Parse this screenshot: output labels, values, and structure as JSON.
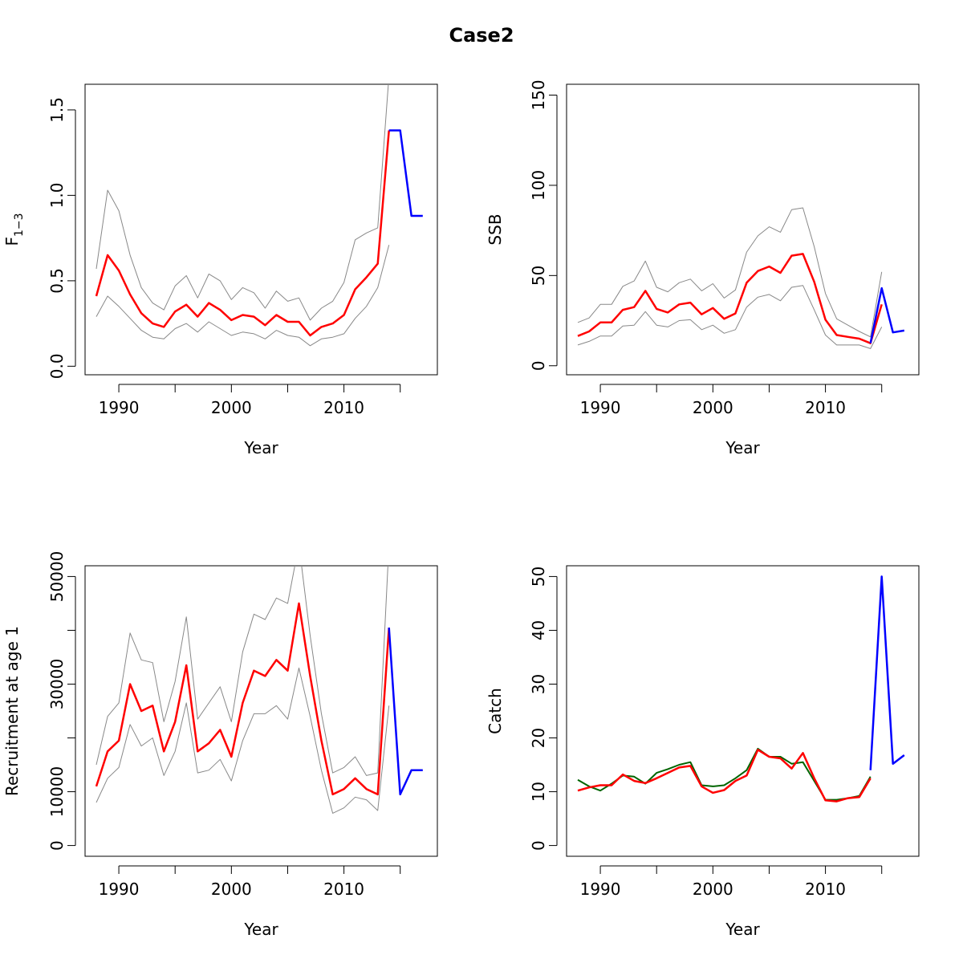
{
  "figure": {
    "title": "Case2"
  },
  "colors": {
    "estimate": "#ff0000",
    "ci": "#888888",
    "projection": "#0000ff",
    "observed": "#006400",
    "axis": "#000000"
  },
  "chart_data": [
    {
      "id": "f",
      "type": "line",
      "xlabel": "Year",
      "ylabel": "F",
      "ylabel_sub": "1−3",
      "xlim": [
        1987,
        2018.3
      ],
      "ylim": [
        -0.05,
        1.65
      ],
      "xticks": [
        1990,
        2000,
        2010
      ],
      "xtick_marks": [
        1990,
        1995,
        2000,
        2005,
        2010,
        2015
      ],
      "yticks": [
        0.0,
        0.5,
        1.0,
        1.5
      ],
      "ytick_labels": [
        "0.0",
        "0.5",
        "1.0",
        "1.5"
      ],
      "series": [
        {
          "role": "lower",
          "x": [
            1988,
            1989,
            1990,
            1991,
            1992,
            1993,
            1994,
            1995,
            1996,
            1997,
            1998,
            1999,
            2000,
            2001,
            2002,
            2003,
            2004,
            2005,
            2006,
            2007,
            2008,
            2009,
            2010,
            2011,
            2012,
            2013,
            2014
          ],
          "y": [
            0.29,
            0.41,
            0.35,
            0.28,
            0.21,
            0.17,
            0.16,
            0.22,
            0.25,
            0.2,
            0.26,
            0.22,
            0.18,
            0.2,
            0.19,
            0.16,
            0.21,
            0.18,
            0.17,
            0.12,
            0.16,
            0.17,
            0.19,
            0.28,
            0.35,
            0.46,
            0.71
          ]
        },
        {
          "role": "upper",
          "x": [
            1988,
            1989,
            1990,
            1991,
            1992,
            1993,
            1994,
            1995,
            1996,
            1997,
            1998,
            1999,
            2000,
            2001,
            2002,
            2003,
            2004,
            2005,
            2006,
            2007,
            2008,
            2009,
            2010,
            2011,
            2012,
            2013,
            2014
          ],
          "y": [
            0.57,
            1.03,
            0.91,
            0.65,
            0.46,
            0.37,
            0.33,
            0.47,
            0.53,
            0.4,
            0.54,
            0.5,
            0.39,
            0.46,
            0.43,
            0.34,
            0.44,
            0.38,
            0.4,
            0.27,
            0.34,
            0.38,
            0.49,
            0.74,
            0.78,
            0.81,
            1.7
          ]
        },
        {
          "role": "estimate",
          "x": [
            1988,
            1989,
            1990,
            1991,
            1992,
            1993,
            1994,
            1995,
            1996,
            1997,
            1998,
            1999,
            2000,
            2001,
            2002,
            2003,
            2004,
            2005,
            2006,
            2007,
            2008,
            2009,
            2010,
            2011,
            2012,
            2013,
            2014
          ],
          "y": [
            0.41,
            0.65,
            0.56,
            0.42,
            0.31,
            0.25,
            0.23,
            0.32,
            0.36,
            0.29,
            0.37,
            0.33,
            0.27,
            0.3,
            0.29,
            0.24,
            0.3,
            0.26,
            0.26,
            0.18,
            0.23,
            0.25,
            0.3,
            0.45,
            0.52,
            0.6,
            1.38
          ]
        },
        {
          "role": "projection",
          "x": [
            2014,
            2015,
            2016,
            2017
          ],
          "y": [
            1.38,
            1.38,
            0.88,
            0.88
          ]
        }
      ]
    },
    {
      "id": "ssb",
      "type": "line",
      "xlabel": "Year",
      "ylabel": "SSB",
      "xlim": [
        1987,
        2018.3
      ],
      "ylim": [
        -5,
        156
      ],
      "xticks": [
        1990,
        2000,
        2010
      ],
      "xtick_marks": [
        1990,
        1995,
        2000,
        2005,
        2010,
        2015
      ],
      "yticks": [
        0,
        50,
        100,
        150
      ],
      "ytick_labels": [
        "0",
        "50",
        "100",
        "150"
      ],
      "series": [
        {
          "role": "lower",
          "x": [
            1988,
            1989,
            1990,
            1991,
            1992,
            1993,
            1994,
            1995,
            1996,
            1997,
            1998,
            1999,
            2000,
            2001,
            2002,
            2003,
            2004,
            2005,
            2006,
            2007,
            2008,
            2009,
            2010,
            2011,
            2012,
            2013,
            2014,
            2015
          ],
          "y": [
            11.5,
            13.5,
            16.5,
            16.5,
            22,
            22.5,
            30,
            22.5,
            21.5,
            25,
            25.5,
            20,
            22.5,
            18,
            20,
            32.5,
            38,
            39.5,
            36,
            43.5,
            44.5,
            31,
            17,
            11.5,
            11.5,
            11.5,
            9.5,
            21.5
          ]
        },
        {
          "role": "upper",
          "x": [
            1988,
            1989,
            1990,
            1991,
            1992,
            1993,
            1994,
            1995,
            1996,
            1997,
            1998,
            1999,
            2000,
            2001,
            2002,
            2003,
            2004,
            2005,
            2006,
            2007,
            2008,
            2009,
            2010,
            2011,
            2012,
            2013,
            2014,
            2015
          ],
          "y": [
            24,
            26.5,
            34,
            34,
            44,
            47,
            58,
            43.5,
            41,
            46,
            48,
            41.5,
            45.5,
            37.5,
            42,
            63,
            72,
            77,
            74,
            86.5,
            87.5,
            66,
            40,
            26,
            22.5,
            19,
            16,
            52
          ]
        },
        {
          "role": "estimate",
          "x": [
            1988,
            1989,
            1990,
            1991,
            1992,
            1993,
            1994,
            1995,
            1996,
            1997,
            1998,
            1999,
            2000,
            2001,
            2002,
            2003,
            2004,
            2005,
            2006,
            2007,
            2008,
            2009,
            2010,
            2011,
            2012,
            2013,
            2014,
            2015
          ],
          "y": [
            16.5,
            19,
            24,
            24,
            31,
            32.5,
            41.5,
            31.5,
            29.5,
            34,
            35,
            28.5,
            32,
            26,
            29,
            46,
            52.5,
            55,
            51.5,
            61,
            62,
            46.5,
            25.5,
            17,
            16,
            15,
            12.5,
            34
          ]
        },
        {
          "role": "projection",
          "x": [
            2014,
            2015,
            2016,
            2017
          ],
          "y": [
            12.5,
            43,
            18.5,
            19.5
          ]
        }
      ]
    },
    {
      "id": "recruitment",
      "type": "line",
      "xlabel": "Year",
      "ylabel": "Recruitment at age 1",
      "xlim": [
        1987,
        2018.3
      ],
      "ylim": [
        -2000,
        52000
      ],
      "xticks": [
        1990,
        2000,
        2010
      ],
      "xtick_marks": [
        1990,
        1995,
        2000,
        2005,
        2010,
        2015
      ],
      "yticks": [
        0,
        10000,
        20000,
        30000,
        40000,
        50000
      ],
      "ytick_labels": [
        "0",
        "10000",
        "",
        "30000",
        "",
        "50000"
      ],
      "series": [
        {
          "role": "lower",
          "x": [
            1988,
            1989,
            1990,
            1991,
            1992,
            1993,
            1994,
            1995,
            1996,
            1997,
            1998,
            1999,
            2000,
            2001,
            2002,
            2003,
            2004,
            2005,
            2006,
            2007,
            2008,
            2009,
            2010,
            2011,
            2012,
            2013,
            2014
          ],
          "y": [
            8000,
            12500,
            14500,
            22500,
            18500,
            20000,
            13000,
            17500,
            26500,
            13500,
            14000,
            16000,
            12000,
            19500,
            24500,
            24500,
            26000,
            23500,
            33000,
            24000,
            14000,
            6000,
            7000,
            9000,
            8500,
            6500,
            26000
          ]
        },
        {
          "role": "upper",
          "x": [
            1988,
            1989,
            1990,
            1991,
            1992,
            1993,
            1994,
            1995,
            1996,
            1997,
            1998,
            1999,
            2000,
            2001,
            2002,
            2003,
            2004,
            2005,
            2006,
            2007,
            2008,
            2009,
            2010,
            2011,
            2012,
            2013,
            2014
          ],
          "y": [
            15000,
            24000,
            26500,
            39500,
            34500,
            34000,
            23000,
            30500,
            42500,
            23500,
            26500,
            29500,
            23000,
            36000,
            43000,
            42000,
            46000,
            45000,
            56000,
            39000,
            24500,
            13500,
            14500,
            16500,
            13000,
            13500,
            56000
          ]
        },
        {
          "role": "estimate",
          "x": [
            1988,
            1989,
            1990,
            1991,
            1992,
            1993,
            1994,
            1995,
            1996,
            1997,
            1998,
            1999,
            2000,
            2001,
            2002,
            2003,
            2004,
            2005,
            2006,
            2007,
            2008,
            2009,
            2010,
            2011,
            2012,
            2013,
            2014
          ],
          "y": [
            11000,
            17500,
            19500,
            30000,
            25000,
            26000,
            17500,
            23000,
            33500,
            17500,
            19000,
            21500,
            16500,
            26500,
            32500,
            31500,
            34500,
            32500,
            45000,
            31500,
            19500,
            9500,
            10500,
            12500,
            10500,
            9500,
            40500
          ]
        },
        {
          "role": "projection",
          "x": [
            2014,
            2015,
            2016,
            2017
          ],
          "y": [
            40500,
            9500,
            14000,
            14000
          ]
        }
      ]
    },
    {
      "id": "catch",
      "type": "line",
      "xlabel": "Year",
      "ylabel": "Catch",
      "xlim": [
        1987,
        2018.3
      ],
      "ylim": [
        -2,
        52
      ],
      "xticks": [
        1990,
        2000,
        2010
      ],
      "xtick_marks": [
        1990,
        1995,
        2000,
        2005,
        2010,
        2015
      ],
      "yticks": [
        0,
        10,
        20,
        30,
        40,
        50
      ],
      "ytick_labels": [
        "0",
        "10",
        "20",
        "30",
        "40",
        "50"
      ],
      "series": [
        {
          "role": "observed",
          "x": [
            1988,
            1989,
            1990,
            1991,
            1992,
            1993,
            1994,
            1995,
            1996,
            1997,
            1998,
            1999,
            2000,
            2001,
            2002,
            2003,
            2004,
            2005,
            2006,
            2007,
            2008,
            2009,
            2010,
            2011,
            2012,
            2013,
            2014
          ],
          "y": [
            12.2,
            11.0,
            10.2,
            11.5,
            13.0,
            12.8,
            11.5,
            13.5,
            14.2,
            15.0,
            15.5,
            11.2,
            11.0,
            11.2,
            12.5,
            14.0,
            18.0,
            16.5,
            16.5,
            15.2,
            15.5,
            12.0,
            8.5,
            8.5,
            8.8,
            9.2,
            12.8
          ]
        },
        {
          "role": "estimate",
          "x": [
            1988,
            1989,
            1990,
            1991,
            1992,
            1993,
            1994,
            1995,
            1996,
            1997,
            1998,
            1999,
            2000,
            2001,
            2002,
            2003,
            2004,
            2005,
            2006,
            2007,
            2008,
            2009,
            2010,
            2011,
            2012,
            2013,
            2014
          ],
          "y": [
            10.2,
            10.8,
            11.2,
            11.2,
            13.2,
            12.0,
            11.6,
            12.5,
            13.5,
            14.5,
            14.8,
            11.0,
            9.8,
            10.3,
            12.0,
            13.0,
            17.8,
            16.5,
            16.2,
            14.3,
            17.2,
            12.5,
            8.4,
            8.2,
            8.8,
            9.0,
            12.5
          ]
        },
        {
          "role": "projection",
          "x": [
            2014,
            2015,
            2016,
            2017
          ],
          "y": [
            14.0,
            50.0,
            15.2,
            16.8
          ]
        }
      ]
    }
  ]
}
